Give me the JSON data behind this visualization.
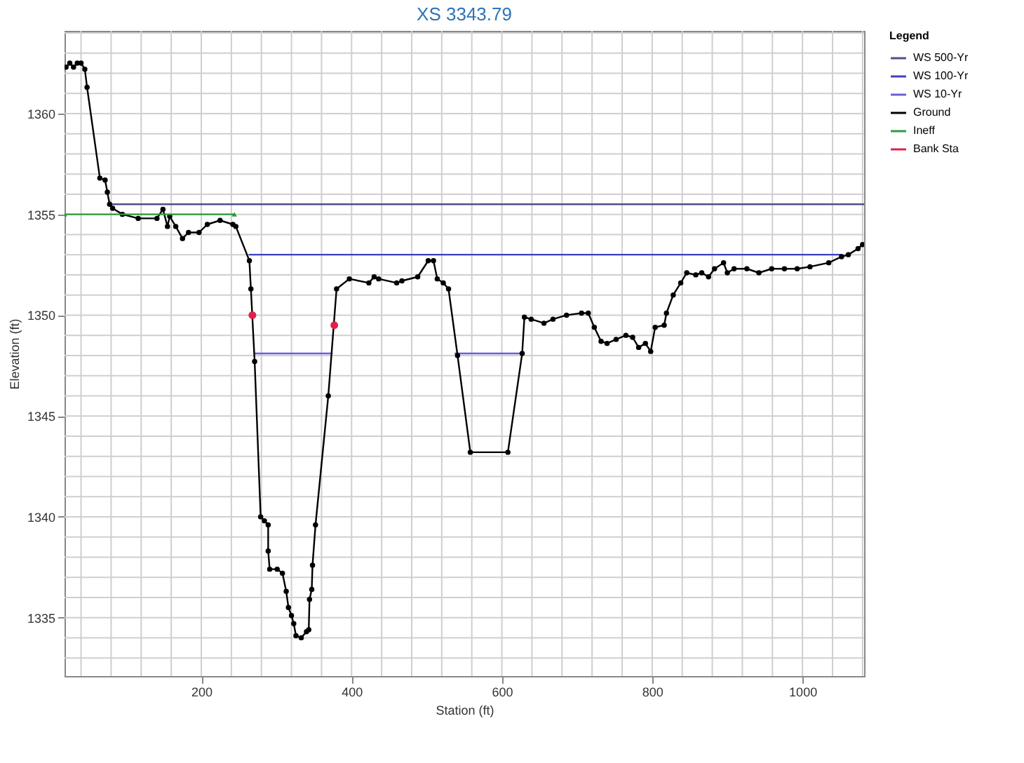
{
  "chart_data": {
    "type": "line",
    "title": "XS 3343.79",
    "xlabel": "Station (ft)",
    "ylabel": "Elevation (ft)",
    "legend_title": "Legend",
    "legend": "right",
    "grid": true,
    "xlim": [
      18,
      1082
    ],
    "ylim": [
      1332.1,
      1364.1
    ],
    "xticks": [
      {
        "value": 40,
        "label": null
      },
      {
        "value": 80,
        "label": null
      },
      {
        "value": 120,
        "label": null
      },
      {
        "value": 160,
        "label": null
      },
      200,
      {
        "value": 240,
        "label": null
      },
      {
        "value": 280,
        "label": null
      },
      {
        "value": 320,
        "label": null
      },
      {
        "value": 360,
        "label": null
      },
      400,
      {
        "value": 440,
        "label": null
      },
      {
        "value": 480,
        "label": null
      },
      {
        "value": 520,
        "label": null
      },
      {
        "value": 560,
        "label": null
      },
      600,
      {
        "value": 640,
        "label": null
      },
      {
        "value": 680,
        "label": null
      },
      {
        "value": 720,
        "label": null
      },
      {
        "value": 760,
        "label": null
      },
      800,
      {
        "value": 840,
        "label": null
      },
      {
        "value": 880,
        "label": null
      },
      {
        "value": 920,
        "label": null
      },
      {
        "value": 960,
        "label": null
      },
      1000,
      {
        "value": 1040,
        "label": null
      },
      {
        "value": 1080,
        "label": null
      }
    ],
    "yticks": [
      {
        "value": 1333,
        "label": null
      },
      {
        "value": 1334,
        "label": null
      },
      1335,
      {
        "value": 1336,
        "label": null
      },
      {
        "value": 1337,
        "label": null
      },
      {
        "value": 1338,
        "label": null
      },
      {
        "value": 1339,
        "label": null
      },
      1340,
      {
        "value": 1341,
        "label": null
      },
      {
        "value": 1342,
        "label": null
      },
      {
        "value": 1343,
        "label": null
      },
      {
        "value": 1344,
        "label": null
      },
      1345,
      {
        "value": 1346,
        "label": null
      },
      {
        "value": 1347,
        "label": null
      },
      {
        "value": 1348,
        "label": null
      },
      {
        "value": 1349,
        "label": null
      },
      1350,
      {
        "value": 1351,
        "label": null
      },
      {
        "value": 1352,
        "label": null
      },
      {
        "value": 1353,
        "label": null
      },
      {
        "value": 1354,
        "label": null
      },
      1355,
      {
        "value": 1356,
        "label": null
      },
      {
        "value": 1357,
        "label": null
      },
      {
        "value": 1358,
        "label": null
      },
      {
        "value": 1359,
        "label": null
      },
      1360,
      {
        "value": 1361,
        "label": null
      },
      {
        "value": 1362,
        "label": null
      },
      {
        "value": 1363,
        "label": null
      },
      {
        "value": 1364,
        "label": null
      }
    ],
    "series": [
      {
        "name": "WS 500-Yr",
        "color": "#50508a",
        "marker": "none",
        "x": [
          82,
          1082
        ],
        "values": [
          1355.5,
          1355.5
        ]
      },
      {
        "name": "WS 100-Yr",
        "color": "#4040c0",
        "marker": "none",
        "x": [
          264,
          1052
        ],
        "values": [
          1353.0,
          1353.0
        ]
      },
      {
        "name": "WS 10-Yr",
        "color": "#6a5fd8",
        "marker": "none",
        "x": [
          271,
          374,
          455,
          538,
          627
        ],
        "values": [
          1348.1,
          1348.1,
          null,
          1348.1,
          1348.1
        ]
      },
      {
        "name": "Ground",
        "color": "#000000",
        "marker": "circle",
        "x": [
          20,
          25,
          30,
          35,
          40,
          45,
          48,
          65,
          72,
          75,
          78,
          82,
          95,
          116,
          141,
          149,
          155,
          158,
          166,
          175,
          183,
          197,
          208,
          225,
          242,
          246,
          264,
          266,
          271,
          279,
          284,
          289,
          289,
          291,
          301,
          308,
          313,
          316,
          320,
          323,
          326,
          333,
          340,
          343,
          344,
          347,
          348,
          352,
          369,
          380,
          397,
          423,
          430,
          436,
          460,
          467,
          488,
          502,
          509,
          514,
          522,
          529,
          541,
          558,
          608,
          627,
          630,
          639,
          656,
          668,
          686,
          706,
          715,
          723,
          732,
          740,
          752,
          765,
          774,
          782,
          791,
          798,
          804,
          816,
          819,
          828,
          838,
          846,
          858,
          866,
          875,
          883,
          895,
          900,
          909,
          926,
          942,
          959,
          976,
          993,
          1010,
          1035,
          1052,
          1061,
          1074,
          1080
        ],
        "values": [
          1362.3,
          1362.5,
          1362.3,
          1362.5,
          1362.5,
          1362.2,
          1361.3,
          1356.8,
          1356.7,
          1356.1,
          1355.5,
          1355.3,
          1355.0,
          1354.8,
          1354.8,
          1355.25,
          1354.4,
          1354.9,
          1354.4,
          1353.8,
          1354.1,
          1354.1,
          1354.5,
          1354.7,
          1354.5,
          1354.4,
          1352.7,
          1351.3,
          1347.7,
          1340.0,
          1339.8,
          1339.6,
          1338.3,
          1337.4,
          1337.4,
          1337.2,
          1336.3,
          1335.5,
          1335.1,
          1334.7,
          1334.1,
          1334.0,
          1334.3,
          1334.4,
          1335.9,
          1336.4,
          1337.6,
          1339.6,
          1346.0,
          1351.3,
          1351.8,
          1351.6,
          1351.9,
          1351.8,
          1351.6,
          1351.7,
          1351.9,
          1352.7,
          1352.7,
          1351.8,
          1351.6,
          1351.3,
          1348.0,
          1343.2,
          1343.2,
          1348.1,
          1349.9,
          1349.8,
          1349.6,
          1349.8,
          1350.0,
          1350.1,
          1350.1,
          1349.4,
          1348.7,
          1348.6,
          1348.8,
          1349.0,
          1348.9,
          1348.4,
          1348.6,
          1348.2,
          1349.4,
          1349.5,
          1350.1,
          1351.0,
          1351.6,
          1352.1,
          1352.0,
          1352.1,
          1351.9,
          1352.3,
          1352.6,
          1352.1,
          1352.3,
          1352.3,
          1352.1,
          1352.3,
          1352.3,
          1352.3,
          1352.4,
          1352.6,
          1352.9,
          1353.0,
          1353.3,
          1353.5
        ]
      },
      {
        "name": "Ineff",
        "color": "#2e9a3e",
        "marker": "triangle",
        "x": [
          18,
          244
        ],
        "values": [
          1355.0,
          1355.0
        ]
      },
      {
        "name": "Bank Sta",
        "type": "scatter",
        "color": "#e0204a",
        "marker": "circle",
        "x": [
          268,
          377
        ],
        "values": [
          1350.0,
          1349.5
        ]
      }
    ]
  }
}
